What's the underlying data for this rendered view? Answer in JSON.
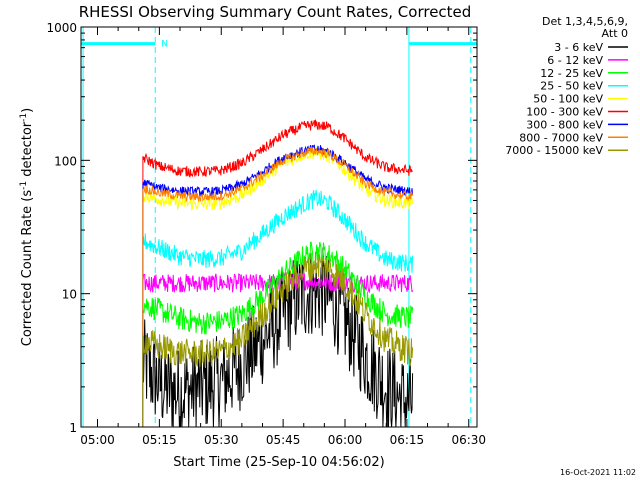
{
  "chart_data": {
    "type": "line",
    "title": "RHESSI Observing Summary Count Rates, Corrected",
    "xlabel": "Start Time (25-Sep-10 04:56:02)",
    "ylabel_main": "Corrected Count Rate (s",
    "ylabel_sup1": "-1",
    "ylabel_mid": " detector",
    "ylabel_sup2": "-1",
    "ylabel_end": ")",
    "yscale": "log",
    "ylim": [
      1,
      1000
    ],
    "xlim_min": [
      296,
      392
    ],
    "yticks": [
      {
        "value": 1,
        "label": "1"
      },
      {
        "value": 10,
        "label": "10"
      },
      {
        "value": 100,
        "label": "100"
      },
      {
        "value": 1000,
        "label": "1000"
      }
    ],
    "xticks": [
      {
        "value": 300,
        "label": "05:00"
      },
      {
        "value": 315,
        "label": "05:15"
      },
      {
        "value": 330,
        "label": "05:30"
      },
      {
        "value": 345,
        "label": "05:45"
      },
      {
        "value": 360,
        "label": "06:00"
      },
      {
        "value": 375,
        "label": "06:15"
      },
      {
        "value": 390,
        "label": "06:30"
      }
    ],
    "data_start": 311,
    "data_end": 376.5,
    "legend_header": [
      "Det 1,3,4,5,6,9,",
      "Att 0"
    ],
    "series": [
      {
        "name": "3 - 6 keV",
        "color": "#000000",
        "noise": 0.35,
        "points": [
          [
            311,
            3
          ],
          [
            313,
            2.5
          ],
          [
            316,
            2
          ],
          [
            320,
            1.8
          ],
          [
            325,
            2
          ],
          [
            330,
            2.2
          ],
          [
            335,
            3
          ],
          [
            340,
            4.5
          ],
          [
            345,
            7
          ],
          [
            348,
            9
          ],
          [
            352,
            10.5
          ],
          [
            355,
            10
          ],
          [
            358,
            8
          ],
          [
            362,
            5
          ],
          [
            366,
            3
          ],
          [
            370,
            2
          ],
          [
            374,
            1.6
          ],
          [
            376.5,
            1.5
          ]
        ]
      },
      {
        "name": "6 - 12 keV",
        "color": "#ff00ff",
        "noise": 0.07,
        "points": [
          [
            311,
            12
          ],
          [
            320,
            12
          ],
          [
            330,
            12
          ],
          [
            340,
            12
          ],
          [
            350,
            12.5
          ],
          [
            360,
            12
          ],
          [
            370,
            12
          ],
          [
            376.5,
            12
          ]
        ]
      },
      {
        "name": "12 - 25 keV",
        "color": "#00ff00",
        "noise": 0.09,
        "points": [
          [
            311,
            8.5
          ],
          [
            315,
            7.5
          ],
          [
            320,
            6.5
          ],
          [
            325,
            6
          ],
          [
            330,
            6.2
          ],
          [
            335,
            7
          ],
          [
            340,
            9.5
          ],
          [
            345,
            14
          ],
          [
            350,
            19
          ],
          [
            353,
            21
          ],
          [
            357,
            19
          ],
          [
            361,
            14
          ],
          [
            365,
            9.5
          ],
          [
            370,
            7
          ],
          [
            376.5,
            6.5
          ]
        ]
      },
      {
        "name": "25 - 50 keV",
        "color": "#00ffff",
        "noise": 0.07,
        "points": [
          [
            311,
            25
          ],
          [
            315,
            22
          ],
          [
            320,
            19
          ],
          [
            325,
            18
          ],
          [
            330,
            18.5
          ],
          [
            335,
            21
          ],
          [
            340,
            28
          ],
          [
            345,
            38
          ],
          [
            350,
            47
          ],
          [
            353,
            52
          ],
          [
            356,
            48
          ],
          [
            360,
            36
          ],
          [
            365,
            24
          ],
          [
            370,
            18
          ],
          [
            376.5,
            16.5
          ]
        ]
      },
      {
        "name": "50 - 100 keV",
        "color": "#ffff00",
        "noise": 0.05,
        "points": [
          [
            311,
            55
          ],
          [
            315,
            51
          ],
          [
            320,
            48
          ],
          [
            325,
            47
          ],
          [
            330,
            48
          ],
          [
            335,
            55
          ],
          [
            340,
            72
          ],
          [
            345,
            95
          ],
          [
            350,
            112
          ],
          [
            353,
            115
          ],
          [
            356,
            108
          ],
          [
            360,
            85
          ],
          [
            365,
            60
          ],
          [
            370,
            50
          ],
          [
            376.5,
            47
          ]
        ]
      },
      {
        "name": "100 - 300 keV",
        "color": "#ff0000",
        "noise": 0.04,
        "points": [
          [
            311,
            105
          ],
          [
            315,
            90
          ],
          [
            320,
            83
          ],
          [
            325,
            82
          ],
          [
            330,
            84
          ],
          [
            335,
            95
          ],
          [
            340,
            120
          ],
          [
            345,
            155
          ],
          [
            350,
            180
          ],
          [
            353,
            185
          ],
          [
            356,
            178
          ],
          [
            360,
            145
          ],
          [
            365,
            105
          ],
          [
            370,
            88
          ],
          [
            376.5,
            83
          ]
        ]
      },
      {
        "name": "300 - 800 keV",
        "color": "#0000ff",
        "noise": 0.035,
        "points": [
          [
            311,
            68
          ],
          [
            315,
            62
          ],
          [
            320,
            59
          ],
          [
            325,
            58
          ],
          [
            330,
            59
          ],
          [
            335,
            66
          ],
          [
            340,
            82
          ],
          [
            345,
            105
          ],
          [
            350,
            118
          ],
          [
            353,
            122
          ],
          [
            356,
            116
          ],
          [
            360,
            96
          ],
          [
            365,
            72
          ],
          [
            370,
            62
          ],
          [
            376.5,
            58
          ]
        ]
      },
      {
        "name": "800 - 7000 keV",
        "color": "#ff8000",
        "noise": 0.035,
        "points": [
          [
            311,
            62
          ],
          [
            315,
            57
          ],
          [
            320,
            54
          ],
          [
            325,
            53
          ],
          [
            330,
            54
          ],
          [
            335,
            61
          ],
          [
            340,
            77
          ],
          [
            345,
            100
          ],
          [
            350,
            114
          ],
          [
            353,
            118
          ],
          [
            356,
            112
          ],
          [
            360,
            92
          ],
          [
            365,
            67
          ],
          [
            370,
            57
          ],
          [
            376.5,
            53
          ]
        ]
      },
      {
        "name": "7000 - 15000 keV",
        "color": "#999900",
        "noise": 0.11,
        "points": [
          [
            311,
            4.5
          ],
          [
            315,
            4
          ],
          [
            320,
            3.6
          ],
          [
            325,
            3.5
          ],
          [
            330,
            3.7
          ],
          [
            335,
            4.5
          ],
          [
            340,
            7
          ],
          [
            345,
            11
          ],
          [
            350,
            15
          ],
          [
            353,
            17
          ],
          [
            357,
            15
          ],
          [
            361,
            11
          ],
          [
            365,
            7
          ],
          [
            370,
            4.5
          ],
          [
            376.5,
            3.6
          ]
        ]
      }
    ],
    "attenuator_segments": [
      [
        296,
        314
      ],
      [
        375.5,
        392
      ]
    ],
    "attenuator_label": "N",
    "attenuator_level": 750,
    "markers_dashed": [
      314,
      390.5
    ],
    "markers_solid": [
      296.5,
      375.5
    ],
    "timestamp": "16-Oct-2021 11:02"
  }
}
